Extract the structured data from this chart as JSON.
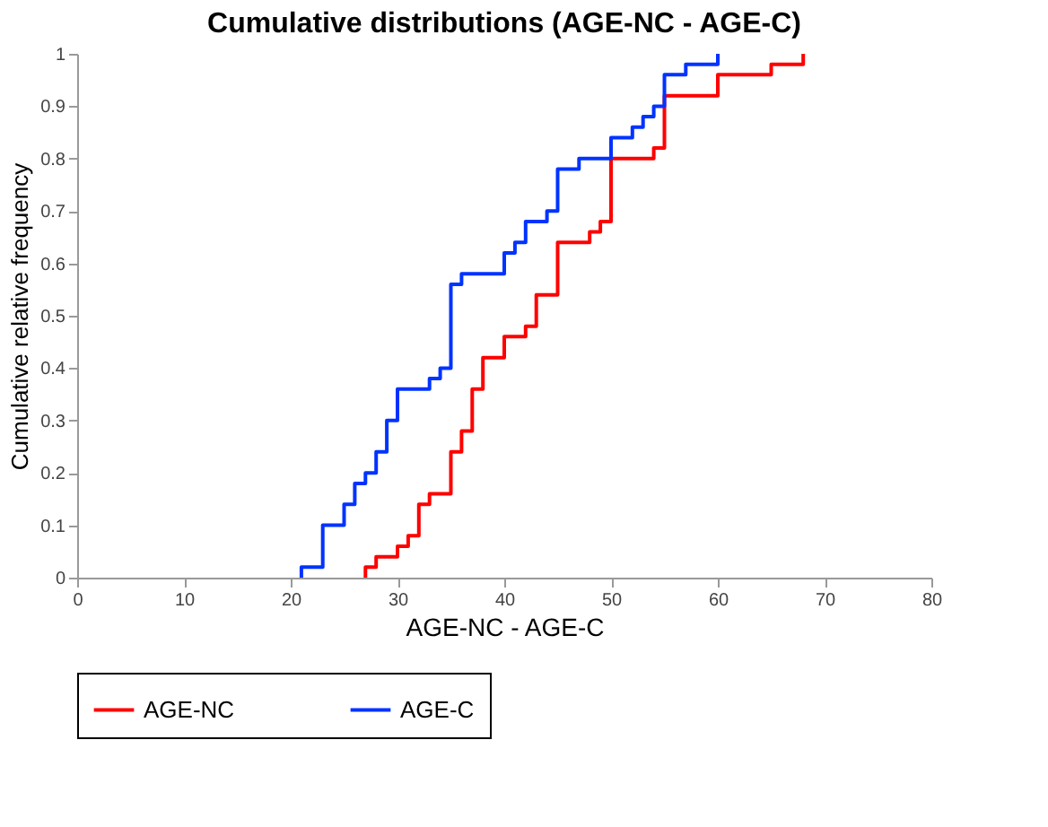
{
  "chart_data": {
    "type": "step",
    "title": "Cumulative distributions (AGE-NC - AGE-C)",
    "xlabel": "AGE-NC - AGE-C",
    "ylabel": "Cumulative relative frequency",
    "xlim": [
      0,
      80
    ],
    "xticks": [
      0,
      10,
      20,
      30,
      40,
      50,
      60,
      70,
      80
    ],
    "ylim": [
      0,
      1
    ],
    "yticks": [
      0,
      0.1,
      0.2,
      0.3,
      0.4,
      0.5,
      0.6,
      0.7,
      0.8,
      0.9,
      1
    ],
    "grid": false,
    "legend": "bottom",
    "marker": "none",
    "line_style": "solid",
    "series": [
      {
        "name": "AGE-NC",
        "color": "#ff0000",
        "x": [
          27,
          27,
          28,
          30,
          31,
          32,
          33,
          35,
          36,
          37,
          38,
          40,
          42,
          43,
          45,
          48,
          49,
          50,
          54,
          55,
          60,
          65,
          68
        ],
        "values": [
          0,
          0.02,
          0.04,
          0.06,
          0.08,
          0.14,
          0.16,
          0.24,
          0.28,
          0.36,
          0.42,
          0.46,
          0.48,
          0.54,
          0.64,
          0.66,
          0.68,
          0.8,
          0.82,
          0.92,
          0.96,
          0.98,
          1
        ]
      },
      {
        "name": "AGE-C",
        "color": "#0033ff",
        "x": [
          21,
          21,
          23,
          25,
          26,
          27,
          28,
          29,
          30,
          33,
          34,
          35,
          36,
          40,
          41,
          42,
          44,
          45,
          47,
          50,
          52,
          53,
          54,
          55,
          57,
          60
        ],
        "values": [
          0,
          0.02,
          0.1,
          0.14,
          0.18,
          0.2,
          0.24,
          0.3,
          0.36,
          0.38,
          0.4,
          0.56,
          0.58,
          0.62,
          0.64,
          0.68,
          0.7,
          0.78,
          0.8,
          0.84,
          0.86,
          0.88,
          0.9,
          0.96,
          0.98,
          1
        ]
      }
    ]
  }
}
